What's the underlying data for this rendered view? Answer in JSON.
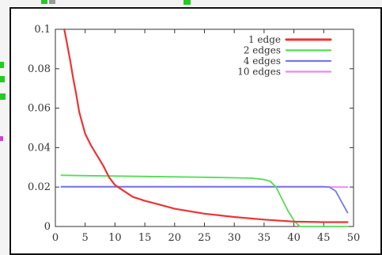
{
  "chart_data": {
    "type": "line",
    "title": "",
    "xlabel": "",
    "ylabel": "",
    "xlim": [
      0,
      50
    ],
    "ylim": [
      0,
      0.1
    ],
    "grid": false,
    "legend_position": "top-right",
    "x_ticks": [
      "0",
      "5",
      "10",
      "15",
      "20",
      "25",
      "30",
      "35",
      "40",
      "45",
      "50"
    ],
    "y_ticks": [
      "0",
      "0.02",
      "0.04",
      "0.06",
      "0.08",
      "0.1"
    ],
    "series": [
      {
        "name": "1 edge",
        "color": "#ee3333",
        "points": [
          [
            1.5,
            0.1
          ],
          [
            2,
            0.092
          ],
          [
            2.5,
            0.084
          ],
          [
            3,
            0.075
          ],
          [
            3.5,
            0.067
          ],
          [
            4,
            0.058
          ],
          [
            5,
            0.047
          ],
          [
            6,
            0.041
          ],
          [
            7,
            0.036
          ],
          [
            8,
            0.031
          ],
          [
            9,
            0.025
          ],
          [
            10,
            0.021
          ],
          [
            11,
            0.019
          ],
          [
            12,
            0.017
          ],
          [
            13,
            0.015
          ],
          [
            14,
            0.014
          ],
          [
            15,
            0.013
          ],
          [
            17,
            0.0115
          ],
          [
            20,
            0.009
          ],
          [
            25,
            0.0065
          ],
          [
            30,
            0.0048
          ],
          [
            35,
            0.0035
          ],
          [
            40,
            0.0025
          ],
          [
            45,
            0.0022
          ],
          [
            49,
            0.0022
          ]
        ]
      },
      {
        "name": "2 edges",
        "color": "#55dd55",
        "points": [
          [
            1,
            0.026
          ],
          [
            5,
            0.0258
          ],
          [
            10,
            0.0256
          ],
          [
            15,
            0.0254
          ],
          [
            20,
            0.0252
          ],
          [
            25,
            0.025
          ],
          [
            30,
            0.0247
          ],
          [
            33,
            0.0245
          ],
          [
            35,
            0.0238
          ],
          [
            36,
            0.023
          ],
          [
            37,
            0.02
          ],
          [
            38,
            0.014
          ],
          [
            39,
            0.008
          ],
          [
            40,
            0.003
          ],
          [
            41,
            0.0
          ],
          [
            45,
            0.0
          ],
          [
            49,
            0.0
          ]
        ]
      },
      {
        "name": "4 edges",
        "color": "#7777ee",
        "points": [
          [
            1,
            0.0202
          ],
          [
            10,
            0.0202
          ],
          [
            20,
            0.0202
          ],
          [
            30,
            0.0202
          ],
          [
            40,
            0.0202
          ],
          [
            45,
            0.0202
          ],
          [
            46,
            0.0199
          ],
          [
            47,
            0.018
          ],
          [
            48,
            0.0125
          ],
          [
            49,
            0.007
          ]
        ]
      },
      {
        "name": "10 edges",
        "color": "#ee88ee",
        "points": [
          [
            1,
            0.02
          ],
          [
            10,
            0.02
          ],
          [
            20,
            0.02
          ],
          [
            30,
            0.02
          ],
          [
            40,
            0.02
          ],
          [
            49,
            0.02
          ]
        ]
      }
    ]
  }
}
